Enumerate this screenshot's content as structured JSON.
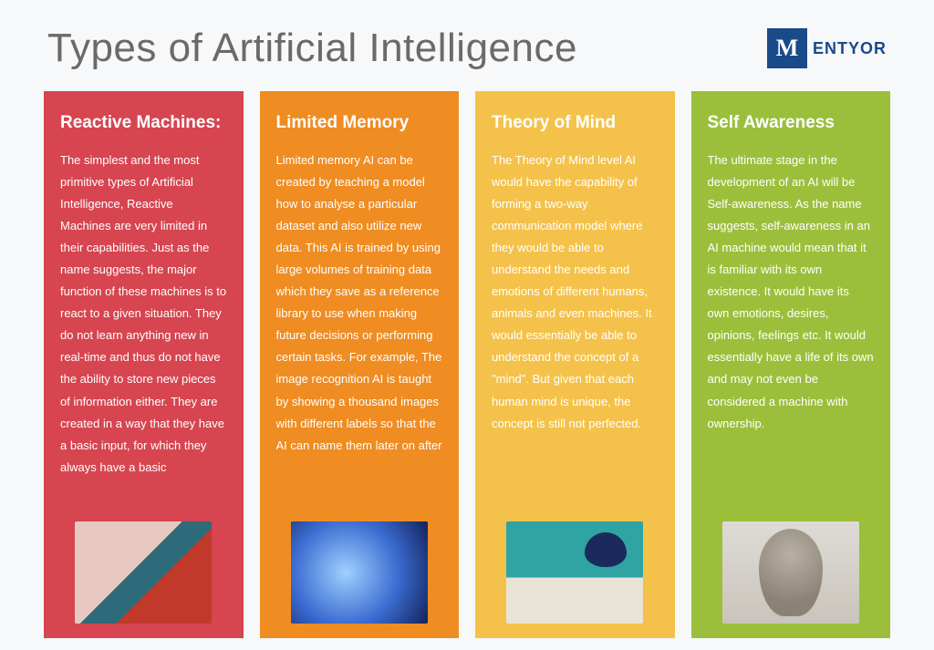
{
  "title": "Types of Artificial Intelligence",
  "logo": {
    "mark": "M",
    "text": "ENTYOR"
  },
  "columns": [
    {
      "heading": "Reactive Machines:",
      "body": "The simplest and the most primitive types of Artificial Intelligence, Reactive Machines are very limited in their capabilities. Just as the name suggests, the major function of these machines is to react to a given situation. They do not learn anything new in real-time and thus do not have the ability to store new pieces of information either. They are created in a way that they have a basic input, for which they always have a basic",
      "bg_color": "#d64550",
      "image_alt": "robot-reading-book"
    },
    {
      "heading": "Limited Memory",
      "body": "Limited memory AI can be created by teaching a model how to analyse a particular dataset and also utilize new data. This AI is trained by using large volumes of training data which they save as a reference library to use when making future decisions or performing certain tasks. For example, The image recognition AI is taught by showing a thousand images with different labels so that the AI can name them later on after",
      "bg_color": "#ef8c22",
      "image_alt": "digital-head-profile"
    },
    {
      "heading": "Theory of Mind",
      "body": "The Theory of Mind level AI would have the capability of forming a two-way communication model where they would be able to understand the needs and emotions of different humans, animals and even machines. It would essentially be able to understand the concept of a \"mind\". But given that each human mind is unique, the concept is still not perfected.",
      "bg_color": "#f4c24a",
      "image_alt": "robot-holding-brain"
    },
    {
      "heading": "Self Awareness",
      "body": "The ultimate stage in the development of an AI will be Self-awareness. As the name suggests, self-awareness in an AI machine would mean that it is familiar with its own existence. It would have its own emotions, desires, opinions, feelings etc. It would essentially have a life of its own and may not even be considered a machine with ownership.",
      "bg_color": "#9bbf3b",
      "image_alt": "circuit-face"
    }
  ]
}
